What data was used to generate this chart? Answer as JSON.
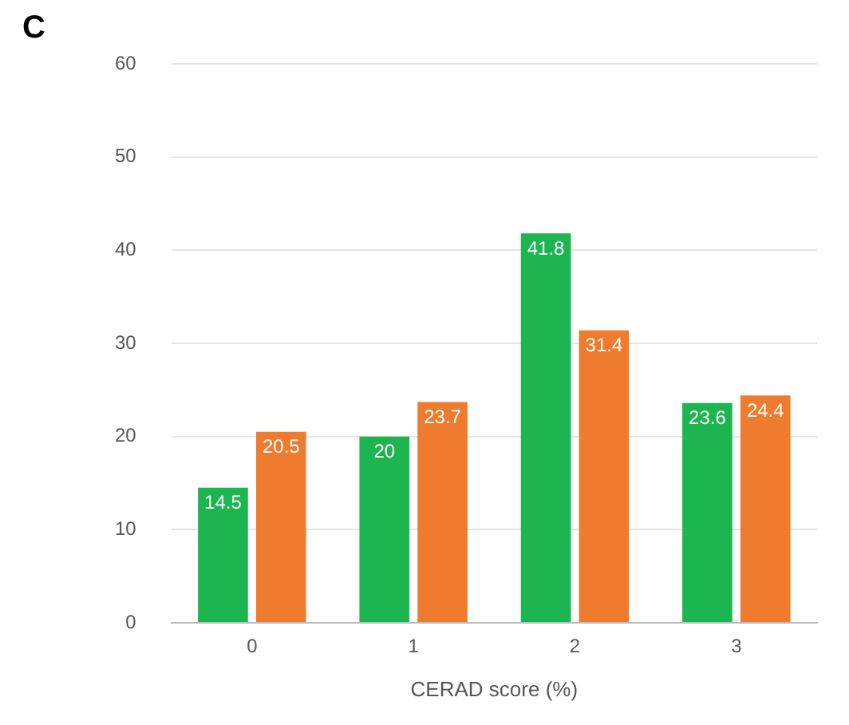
{
  "chart_data": {
    "type": "bar",
    "title": "C",
    "xlabel": "CERAD score (%)",
    "categories": [
      "0",
      "1",
      "2",
      "3"
    ],
    "series": [
      {
        "color": "#1db550",
        "values": [
          14.5,
          20,
          41.8,
          23.6
        ]
      },
      {
        "color": "#ef7b2f",
        "values": [
          20.5,
          23.7,
          31.4,
          24.4
        ]
      }
    ],
    "ylim": [
      0,
      60
    ],
    "yticks": [
      0,
      10,
      20,
      30,
      40,
      50,
      60
    ],
    "grid": "y",
    "legend": false,
    "data_labels": true
  }
}
